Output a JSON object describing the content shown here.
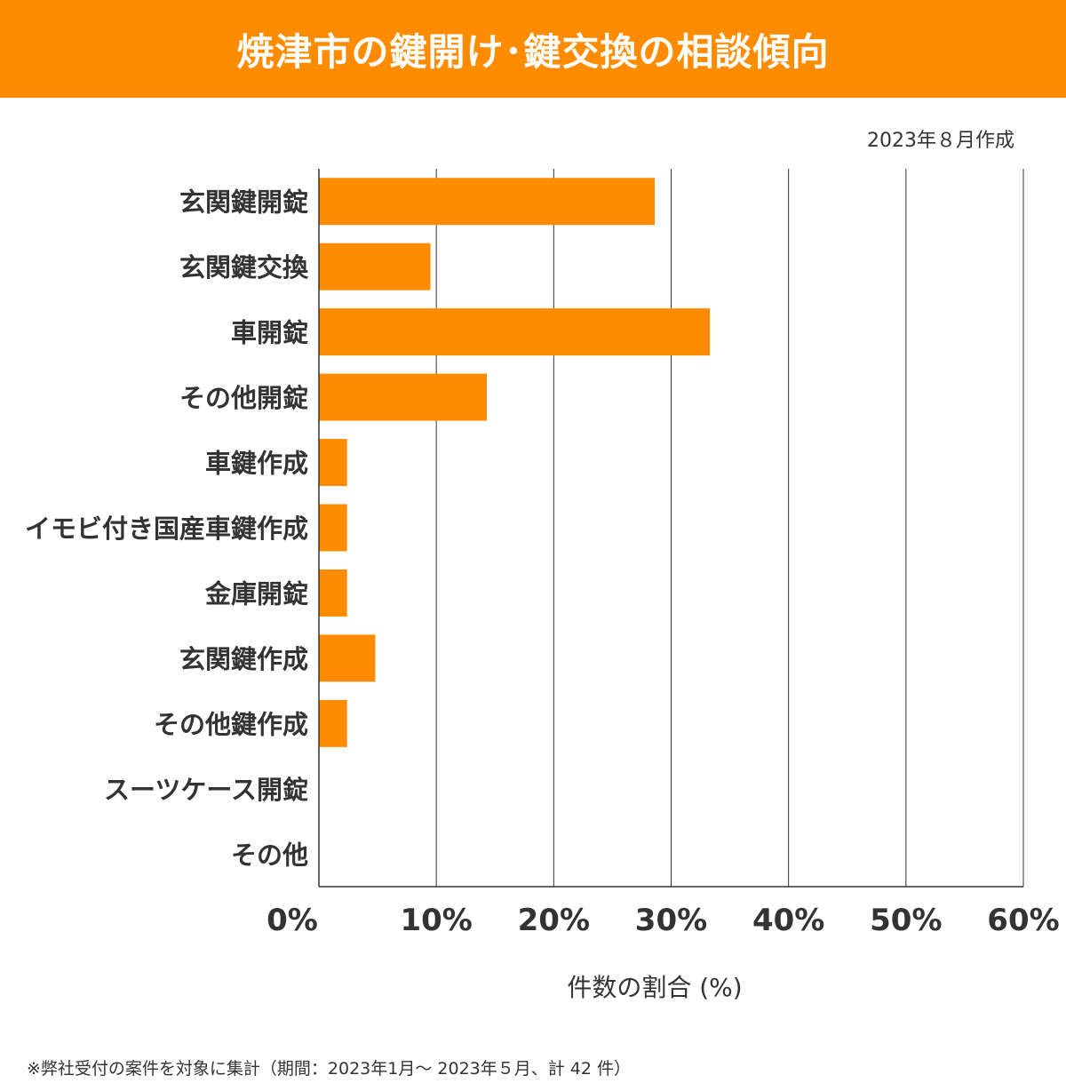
{
  "header": {
    "title": "焼津市の鍵開け･鍵交換の相談傾向"
  },
  "date_label": "2023年８月作成",
  "footnote": "※弊社受付の案件を対象に集計（期間：2023年1月～ 2023年５月、計 42 件）",
  "colors": {
    "accent": "#FF8C00",
    "bar": "#FF8C00",
    "grid": "#333333"
  },
  "chart_data": {
    "type": "bar",
    "orientation": "horizontal",
    "title": "焼津市の鍵開け･鍵交換の相談傾向",
    "xlabel": "件数の割合 (%)",
    "ylabel": "",
    "xlim": [
      0,
      60
    ],
    "xticks": [
      0,
      10,
      20,
      30,
      40,
      50,
      60
    ],
    "xtick_labels": [
      "0%",
      "10%",
      "20%",
      "30%",
      "40%",
      "50%",
      "60%"
    ],
    "grid": "vertical",
    "categories": [
      "玄関鍵開錠",
      "玄関鍵交換",
      "車開錠",
      "その他開錠",
      "車鍵作成",
      "イモビ付き国産車鍵作成",
      "金庫開錠",
      "玄関鍵作成",
      "その他鍵作成",
      "スーツケース開錠",
      "その他"
    ],
    "values": [
      28.6,
      9.5,
      33.3,
      14.3,
      2.4,
      2.4,
      2.4,
      4.8,
      2.4,
      0,
      0
    ]
  }
}
